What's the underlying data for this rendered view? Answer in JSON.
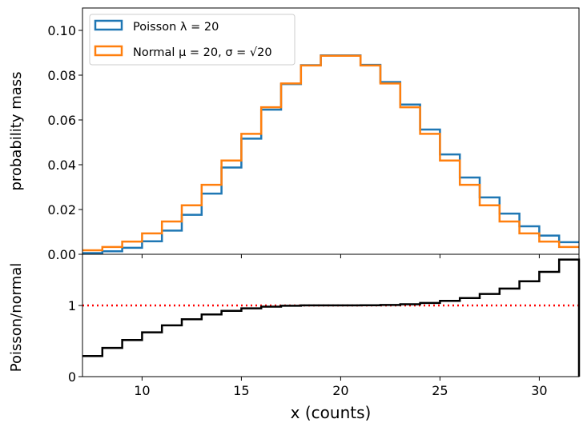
{
  "chart_data": [
    {
      "type": "line",
      "drawstyle": "step",
      "ylabel": "probability mass",
      "xlim": [
        7,
        32
      ],
      "ylim": [
        0,
        0.11
      ],
      "yticks": [
        "0.00",
        "0.02",
        "0.04",
        "0.06",
        "0.08",
        "0.10"
      ],
      "legend_position": "top-left",
      "x": [
        7,
        8,
        9,
        10,
        11,
        12,
        13,
        14,
        15,
        16,
        17,
        18,
        19,
        20,
        21,
        22,
        23,
        24,
        25,
        26,
        27,
        28,
        29,
        30,
        31
      ],
      "series": [
        {
          "name": "Poisson λ = 20",
          "color": "#1f77b4",
          "values": [
            0.00052,
            0.00132,
            0.00291,
            0.00582,
            0.01057,
            0.01762,
            0.02711,
            0.03874,
            0.05165,
            0.06461,
            0.07601,
            0.08446,
            0.08884,
            0.08884,
            0.0846,
            0.07691,
            0.06688,
            0.05573,
            0.04459,
            0.0343,
            0.02541,
            0.01815,
            0.01252,
            0.00834,
            0.00538
          ]
        },
        {
          "name": "Normal μ = 20, σ = √20",
          "color": "#ff7f0e",
          "values": [
            0.0018,
            0.00327,
            0.00566,
            0.00934,
            0.01466,
            0.02187,
            0.03103,
            0.04188,
            0.05378,
            0.06568,
            0.0763,
            0.08433,
            0.08865,
            0.08865,
            0.08433,
            0.0763,
            0.06568,
            0.05378,
            0.04188,
            0.03103,
            0.02187,
            0.01466,
            0.00934,
            0.00566,
            0.00327
          ]
        }
      ]
    },
    {
      "type": "line",
      "drawstyle": "step",
      "xlabel": "x (counts)",
      "ylabel": "Poisson/normal",
      "xlim": [
        7,
        32
      ],
      "ylim": [
        0,
        1.72
      ],
      "xticks": [
        "10",
        "15",
        "20",
        "25",
        "30"
      ],
      "yticks": [
        "0",
        "1"
      ],
      "reference_line": {
        "y": 1,
        "color": "#ff0000",
        "style": "dotted"
      },
      "x": [
        7,
        8,
        9,
        10,
        11,
        12,
        13,
        14,
        15,
        16,
        17,
        18,
        19,
        20,
        21,
        22,
        23,
        24,
        25,
        26,
        27,
        28,
        29,
        30,
        31
      ],
      "series": [
        {
          "color": "#000000",
          "values": [
            0.289,
            0.404,
            0.514,
            0.623,
            0.721,
            0.806,
            0.874,
            0.925,
            0.96,
            0.984,
            0.996,
            1.002,
            1.002,
            1.002,
            1.003,
            1.008,
            1.018,
            1.036,
            1.065,
            1.105,
            1.162,
            1.238,
            1.34,
            1.473,
            1.645
          ]
        }
      ]
    }
  ]
}
